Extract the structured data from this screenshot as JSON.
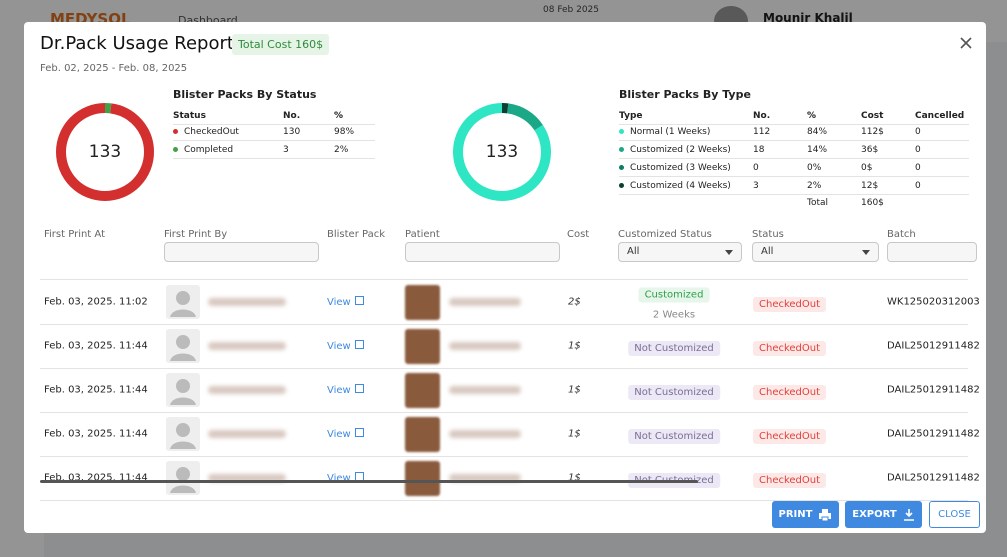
{
  "app_header": {
    "logo": "MEDYSOL",
    "breadcrumb": "Dashboard",
    "date": "08 Feb 2025",
    "user": "Mounir Khalil"
  },
  "modal": {
    "title": "Dr.Pack Usage Report",
    "total_cost": "Total Cost 160$",
    "date_range": "Feb. 02, 2025 - Feb. 08, 2025",
    "status_summary": {
      "title": "Blister Packs By Status",
      "center_total": 133,
      "columns": [
        "Status",
        "No.",
        "%"
      ],
      "rows": [
        {
          "color": "#d32f2f",
          "label": "CheckedOut",
          "count": 130,
          "percent": "98%"
        },
        {
          "color": "#43a047",
          "label": "Completed",
          "count": 3,
          "percent": "2%"
        }
      ]
    },
    "type_summary": {
      "title": "Blister Packs By Type",
      "center_total": 133,
      "columns": [
        "Type",
        "No.",
        "%",
        "Cost",
        "Cancelled"
      ],
      "rows": [
        {
          "color": "#2ee6c4",
          "label": "Normal (1 Weeks)",
          "count": 112,
          "percent": "84%",
          "cost": "112$",
          "cancelled": 0
        },
        {
          "color": "#1aa887",
          "label": "Customized (2 Weeks)",
          "count": 18,
          "percent": "14%",
          "cost": "36$",
          "cancelled": 0
        },
        {
          "color": "#0f7d62",
          "label": "Customized (3 Weeks)",
          "count": 0,
          "percent": "0%",
          "cost": "0$",
          "cancelled": 0
        },
        {
          "color": "#0b3f31",
          "label": "Customized (4 Weeks)",
          "count": 3,
          "percent": "2%",
          "cost": "12$",
          "cancelled": 0
        }
      ],
      "total_label": "Total",
      "total_cost": "160$"
    },
    "table": {
      "columns": [
        "First Print At",
        "First Print By",
        "Blister Pack",
        "Patient",
        "Cost",
        "Customized Status",
        "Status",
        "Batch"
      ],
      "filter_default": "All",
      "rows": [
        {
          "first_print_at": "Feb. 03, 2025. 11:02",
          "blister_pack": "View",
          "cost": "2$",
          "customized_status": "Customized",
          "customized_detail": "2 Weeks",
          "status": "CheckedOut",
          "batch": "WK125020312003"
        },
        {
          "first_print_at": "Feb. 03, 2025. 11:44",
          "blister_pack": "View",
          "cost": "1$",
          "customized_status": "Not Customized",
          "status": "CheckedOut",
          "batch": "DAIL25012911482"
        },
        {
          "first_print_at": "Feb. 03, 2025. 11:44",
          "blister_pack": "View",
          "cost": "1$",
          "customized_status": "Not Customized",
          "status": "CheckedOut",
          "batch": "DAIL25012911482"
        },
        {
          "first_print_at": "Feb. 03, 2025. 11:44",
          "blister_pack": "View",
          "cost": "1$",
          "customized_status": "Not Customized",
          "status": "CheckedOut",
          "batch": "DAIL25012911482"
        },
        {
          "first_print_at": "Feb. 03, 2025. 11:44",
          "blister_pack": "View",
          "cost": "1$",
          "customized_status": "Not Customized",
          "status": "CheckedOut",
          "batch": "DAIL25012911482"
        }
      ]
    },
    "buttons": {
      "print": "PRINT",
      "export": "EXPORT",
      "close": "CLOSE"
    }
  }
}
